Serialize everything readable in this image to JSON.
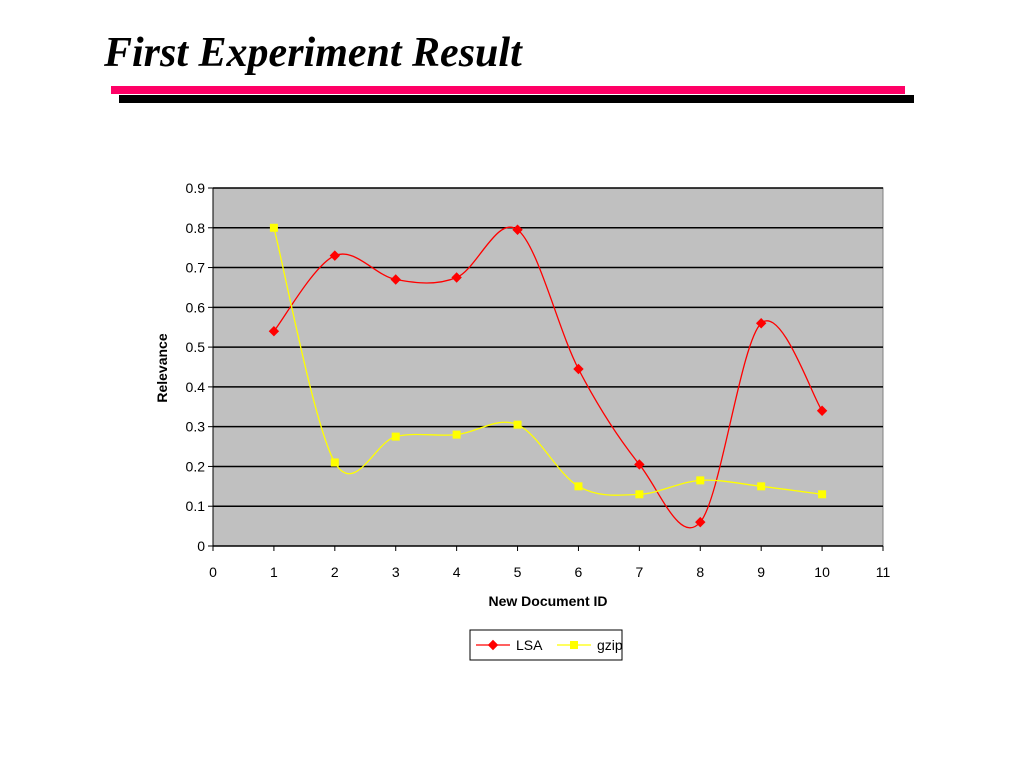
{
  "slide": {
    "title": "First Experiment Result",
    "accent_color": "#ff0066"
  },
  "chart_data": {
    "type": "line",
    "title": "",
    "xlabel": "New Document ID",
    "ylabel": "Relevance",
    "xlim": [
      0,
      11
    ],
    "ylim": [
      0,
      0.9
    ],
    "x_ticks": [
      0,
      1,
      2,
      3,
      4,
      5,
      6,
      7,
      8,
      9,
      10,
      11
    ],
    "y_ticks": [
      0,
      0.1,
      0.2,
      0.3,
      0.4,
      0.5,
      0.6,
      0.7,
      0.8,
      0.9
    ],
    "y_tick_labels": [
      "0",
      "0.1",
      "0.2",
      "0.3",
      "0.4",
      "0.5",
      "0.6",
      "0.7",
      "0.8",
      "0.9"
    ],
    "grid": "horizontal",
    "plot_background": "#c0c0c0",
    "smooth": true,
    "legend": "bottom",
    "series": [
      {
        "name": "LSA",
        "color": "#ff0000",
        "marker": "diamond",
        "x": [
          1,
          2,
          3,
          4,
          5,
          6,
          7,
          8,
          9,
          10
        ],
        "y": [
          0.54,
          0.73,
          0.67,
          0.675,
          0.795,
          0.445,
          0.205,
          0.06,
          0.56,
          0.34
        ]
      },
      {
        "name": "gzip",
        "color": "#ffff00",
        "marker": "square",
        "x": [
          1,
          2,
          3,
          4,
          5,
          6,
          7,
          8,
          9,
          10
        ],
        "y": [
          0.8,
          0.21,
          0.275,
          0.28,
          0.305,
          0.15,
          0.13,
          0.165,
          0.15,
          0.13
        ]
      }
    ]
  }
}
